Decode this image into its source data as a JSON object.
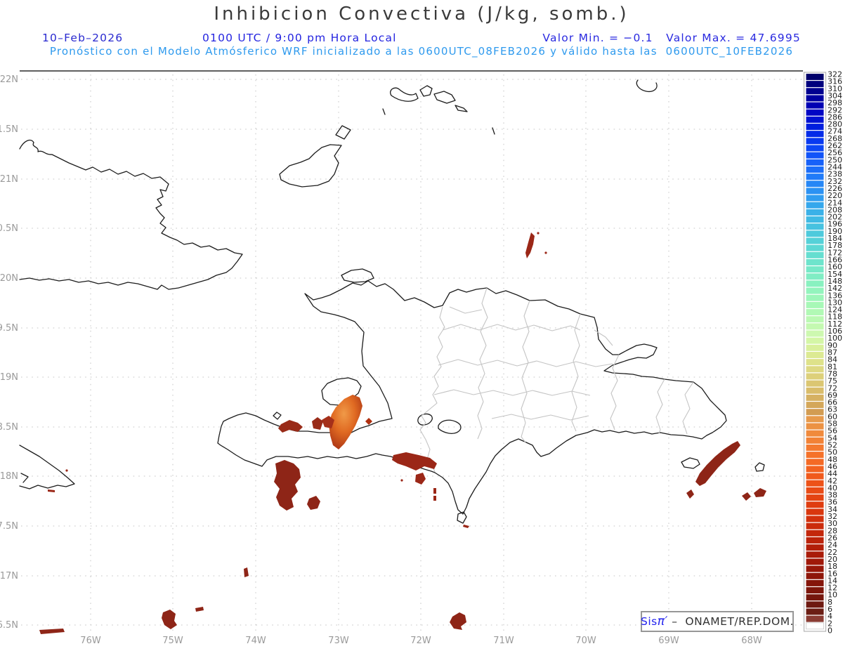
{
  "header": {
    "title": "Inhibicion Convectiva (J/kg, somb.)",
    "date": "10–Feb–2026",
    "time_local": "0100 UTC / 9:00 pm Hora Local",
    "valor": "Valor Min. = −0.1   Valor Max. = 47.6995",
    "forecast": "Pronóstico con el Modelo Atmósferico WRF inicializado a las 0600UTC_08FEB2026 y válido hasta las  0600UTC_10FEB2026"
  },
  "axes": {
    "lat_ticks": [
      {
        "label": "22N",
        "pos": 113
      },
      {
        "label": "1.5N",
        "pos": 184
      },
      {
        "label": "21N",
        "pos": 255
      },
      {
        "label": "0.5N",
        "pos": 325
      },
      {
        "label": "20N",
        "pos": 396
      },
      {
        "label": "9.5N",
        "pos": 467
      },
      {
        "label": "19N",
        "pos": 537
      },
      {
        "label": "8.5N",
        "pos": 608
      },
      {
        "label": "18N",
        "pos": 678
      },
      {
        "label": "7.5N",
        "pos": 749
      },
      {
        "label": "17N",
        "pos": 820
      },
      {
        "label": "6.5N",
        "pos": 890
      }
    ],
    "lon_ticks": [
      {
        "label": "76W",
        "pos": 129
      },
      {
        "label": "75W",
        "pos": 246
      },
      {
        "label": "74W",
        "pos": 364
      },
      {
        "label": "73W",
        "pos": 482
      },
      {
        "label": "72W",
        "pos": 599
      },
      {
        "label": "71W",
        "pos": 717
      },
      {
        "label": "70W",
        "pos": 834
      },
      {
        "label": "69W",
        "pos": 952
      },
      {
        "label": "68W",
        "pos": 1070
      }
    ]
  },
  "colorbar": {
    "values": [
      322,
      316,
      310,
      304,
      298,
      292,
      286,
      280,
      274,
      268,
      262,
      256,
      250,
      244,
      238,
      232,
      226,
      220,
      214,
      208,
      202,
      196,
      190,
      184,
      178,
      172,
      166,
      160,
      154,
      148,
      142,
      136,
      130,
      124,
      118,
      112,
      106,
      100,
      90,
      87,
      84,
      81,
      78,
      75,
      72,
      69,
      66,
      63,
      60,
      58,
      56,
      54,
      52,
      50,
      48,
      46,
      44,
      42,
      40,
      38,
      36,
      34,
      32,
      30,
      28,
      26,
      24,
      22,
      20,
      18,
      16,
      14,
      12,
      10,
      8,
      6,
      4,
      2,
      0
    ],
    "colors": [
      "#00006b",
      "#00007d",
      "#00008f",
      "#0000a1",
      "#0000b3",
      "#0005c4",
      "#0011d2",
      "#001ede",
      "#032be8",
      "#0839f0",
      "#0d47f5",
      "#1254f8",
      "#1761f9",
      "#1c6ef9",
      "#217bf8",
      "#2687f6",
      "#2b92f3",
      "#309df0",
      "#35a7ec",
      "#3bb1e8",
      "#41bae4",
      "#47c2e0",
      "#4ecadc",
      "#55d1d8",
      "#5dd8d4",
      "#65ded0",
      "#6ee4cc",
      "#77e9c8",
      "#80edc4",
      "#89f1c0",
      "#93f4bd",
      "#9df6ba",
      "#a7f8b7",
      "#b1f9b5",
      "#bbf9b3",
      "#c4f9b1",
      "#cdf8b0",
      "#d4f6a6",
      "#d9f09c",
      "#dcea93",
      "#dee28a",
      "#ded982",
      "#ddd07a",
      "#dbc672",
      "#d9bc6a",
      "#d6b162",
      "#d4a75a",
      "#d29c52",
      "#e79a4b",
      "#ec9243",
      "#f08a3c",
      "#f28236",
      "#f47a30",
      "#f5722a",
      "#f46a25",
      "#f26220",
      "#f05a1c",
      "#ed5218",
      "#e94b15",
      "#e44412",
      "#df3d10",
      "#d9370e",
      "#d2310d",
      "#cb2c0c",
      "#c3270b",
      "#bb230a",
      "#b21f09",
      "#a91c09",
      "#a01909",
      "#971709",
      "#8e1609",
      "#85150a",
      "#7d160b",
      "#75170d",
      "#6e1910",
      "#6b1e14",
      "#8a3c33",
      "#ffffff"
    ]
  },
  "badge": {
    "logo_sis": "Sis",
    "logo_pi": "π′",
    "org": "–  ONAMET/REP.DOM."
  },
  "style_colors": {
    "subtitle_blue": "#2424e0",
    "forecast_blue": "#2e9aee",
    "axis_gray": "#9a9a9a",
    "coast_black": "#1c1c1c",
    "province_gray": "#c4c4c4",
    "cin_dark_red": "#8e2517",
    "cin_red": "#9b2717",
    "cin_orange": "#ef9040"
  }
}
